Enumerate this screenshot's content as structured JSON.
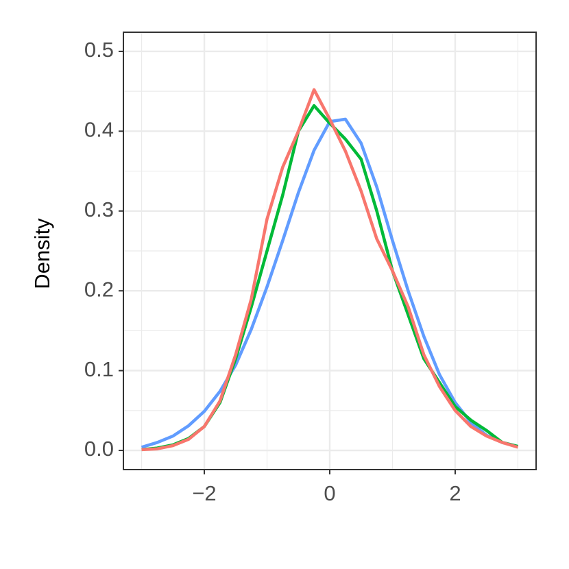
{
  "chart_data": {
    "type": "line",
    "y_label": "Density",
    "x": [
      -3,
      -2.75,
      -2.5,
      -2.25,
      -2,
      -1.75,
      -1.5,
      -1.25,
      -1,
      -0.75,
      -0.5,
      -0.25,
      0,
      0.25,
      0.5,
      0.75,
      1,
      1.25,
      1.5,
      1.75,
      2,
      2.25,
      2.5,
      2.75,
      3
    ],
    "series": [
      {
        "color": "#619CFF",
        "values": [
          0.004,
          0.01,
          0.018,
          0.031,
          0.049,
          0.074,
          0.107,
          0.152,
          0.205,
          0.263,
          0.323,
          0.376,
          0.412,
          0.415,
          0.385,
          0.33,
          0.263,
          0.2,
          0.143,
          0.095,
          0.06,
          0.035,
          0.019,
          0.01,
          0.005
        ]
      },
      {
        "color": "#00BA38",
        "values": [
          0.001,
          0.003,
          0.007,
          0.015,
          0.03,
          0.06,
          0.115,
          0.18,
          0.25,
          0.32,
          0.4,
          0.432,
          0.41,
          0.39,
          0.365,
          0.3,
          0.225,
          0.17,
          0.115,
          0.085,
          0.055,
          0.038,
          0.025,
          0.01,
          0.005
        ]
      },
      {
        "color": "#F8766D",
        "values": [
          0.001,
          0.002,
          0.006,
          0.014,
          0.03,
          0.062,
          0.12,
          0.19,
          0.29,
          0.355,
          0.4,
          0.452,
          0.415,
          0.375,
          0.325,
          0.265,
          0.225,
          0.18,
          0.12,
          0.08,
          0.05,
          0.03,
          0.018,
          0.01,
          0.004
        ]
      }
    ],
    "xlim": [
      -3.29,
      3.29
    ],
    "ylim": [
      -0.024,
      0.524
    ],
    "xticks": [
      {
        "value": -2,
        "label": "−2"
      },
      0,
      2
    ],
    "yticks": [
      {
        "value": 0,
        "label": "0.0"
      },
      0.1,
      0.2,
      0.3,
      0.4,
      0.5
    ],
    "x_minor_grid": [
      -3,
      -1,
      1,
      3
    ],
    "y_minor_grid": [
      0.05,
      0.15,
      0.25,
      0.35,
      0.45
    ],
    "grid": true
  }
}
